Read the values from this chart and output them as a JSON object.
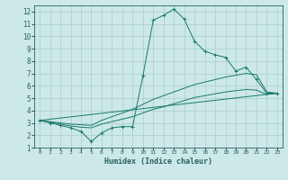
{
  "xlabel": "Humidex (Indice chaleur)",
  "ylabel": "",
  "bg_color": "#cce8e8",
  "grid_color": "#aacccc",
  "line_color": "#1a7a6a",
  "xlim": [
    -0.5,
    23.5
  ],
  "ylim": [
    1,
    12.5
  ],
  "xticks": [
    0,
    1,
    2,
    3,
    4,
    5,
    6,
    7,
    8,
    9,
    10,
    11,
    12,
    13,
    14,
    15,
    16,
    17,
    18,
    19,
    20,
    21,
    22,
    23
  ],
  "yticks": [
    1,
    2,
    3,
    4,
    5,
    6,
    7,
    8,
    9,
    10,
    11,
    12
  ],
  "series": [
    {
      "x": [
        0,
        1,
        2,
        3,
        4,
        5,
        6,
        7,
        8,
        9,
        10,
        11,
        12,
        13,
        14,
        15,
        16,
        17,
        18,
        19,
        20,
        21,
        22,
        23
      ],
      "y": [
        3.2,
        3.0,
        2.8,
        2.6,
        2.3,
        1.5,
        2.2,
        2.6,
        2.7,
        2.7,
        6.8,
        11.3,
        11.7,
        12.2,
        11.4,
        9.6,
        8.8,
        8.5,
        8.3,
        7.2,
        7.5,
        6.5,
        5.4,
        5.4
      ],
      "marker": "+"
    },
    {
      "x": [
        0,
        1,
        2,
        3,
        4,
        5,
        6,
        7,
        8,
        9,
        10,
        11,
        12,
        13,
        14,
        15,
        16,
        17,
        18,
        19,
        20,
        21,
        22,
        23
      ],
      "y": [
        3.2,
        3.1,
        3.0,
        2.9,
        2.85,
        2.8,
        3.2,
        3.5,
        3.8,
        4.1,
        4.5,
        4.9,
        5.2,
        5.5,
        5.8,
        6.1,
        6.3,
        6.5,
        6.7,
        6.85,
        7.0,
        6.9,
        5.5,
        5.4
      ],
      "marker": null
    },
    {
      "x": [
        0,
        1,
        2,
        3,
        4,
        5,
        6,
        7,
        8,
        9,
        10,
        11,
        12,
        13,
        14,
        15,
        16,
        17,
        18,
        19,
        20,
        21,
        22,
        23
      ],
      "y": [
        3.2,
        3.05,
        2.9,
        2.75,
        2.65,
        2.6,
        2.9,
        3.1,
        3.3,
        3.5,
        3.8,
        4.1,
        4.3,
        4.55,
        4.8,
        5.05,
        5.2,
        5.35,
        5.5,
        5.6,
        5.7,
        5.65,
        5.3,
        5.4
      ],
      "marker": null
    },
    {
      "x": [
        0,
        23
      ],
      "y": [
        3.2,
        5.4
      ],
      "marker": null
    }
  ]
}
